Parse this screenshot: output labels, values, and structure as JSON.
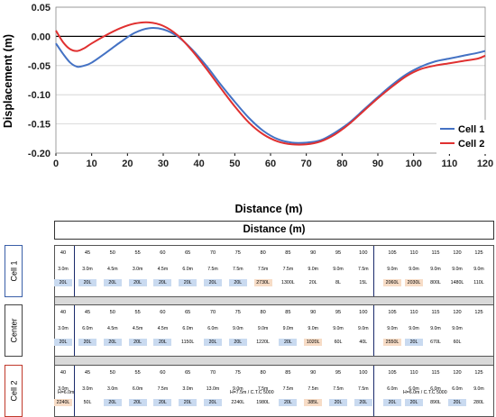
{
  "chart_data": {
    "type": "line",
    "xlabel": "Distance (m)",
    "ylabel": "Displacement (m)",
    "xlim": [
      0,
      120
    ],
    "ylim": [
      -0.2,
      0.05
    ],
    "xticks": [
      "0",
      "10",
      "20",
      "30",
      "40",
      "50",
      "60",
      "70",
      "80",
      "90",
      "100",
      "110",
      "120"
    ],
    "yticks": [
      "0.05",
      "0.00",
      "-0.05",
      "-0.10",
      "-0.15",
      "-0.20"
    ],
    "grid": true,
    "legend": "bottom-right",
    "series": [
      {
        "name": "Cell 1",
        "color": "#4472c4",
        "x": [
          0,
          2,
          4,
          6,
          8,
          10,
          14,
          18,
          22,
          26,
          30,
          34,
          38,
          42,
          46,
          50,
          54,
          58,
          62,
          66,
          70,
          74,
          78,
          82,
          86,
          90,
          94,
          98,
          102,
          106,
          110,
          114,
          118,
          120
        ],
        "y": [
          -0.012,
          -0.03,
          -0.045,
          -0.052,
          -0.05,
          -0.045,
          -0.028,
          -0.01,
          0.006,
          0.014,
          0.012,
          0.0,
          -0.022,
          -0.05,
          -0.082,
          -0.112,
          -0.14,
          -0.162,
          -0.176,
          -0.182,
          -0.182,
          -0.178,
          -0.165,
          -0.148,
          -0.126,
          -0.104,
          -0.083,
          -0.065,
          -0.052,
          -0.043,
          -0.038,
          -0.033,
          -0.028,
          -0.025
        ]
      },
      {
        "name": "Cell 2",
        "color": "#e03030",
        "x": [
          0,
          2,
          4,
          6,
          8,
          10,
          14,
          18,
          22,
          26,
          30,
          34,
          38,
          42,
          46,
          50,
          54,
          58,
          62,
          66,
          70,
          74,
          78,
          82,
          86,
          90,
          94,
          98,
          102,
          106,
          110,
          114,
          118,
          120
        ],
        "y": [
          0.01,
          -0.01,
          -0.022,
          -0.025,
          -0.02,
          -0.012,
          0.002,
          0.014,
          0.022,
          0.024,
          0.018,
          0.002,
          -0.024,
          -0.055,
          -0.088,
          -0.12,
          -0.148,
          -0.168,
          -0.18,
          -0.185,
          -0.185,
          -0.18,
          -0.168,
          -0.15,
          -0.128,
          -0.106,
          -0.086,
          -0.068,
          -0.056,
          -0.05,
          -0.046,
          -0.042,
          -0.038,
          -0.033
        ]
      }
    ]
  },
  "table": {
    "title": "Distance (m)",
    "rows": [
      {
        "label": "Cell 1",
        "style": "blue",
        "cells": [
          {
            "pos": "40",
            "len": "3.0m",
            "vol": "20L",
            "hl": "blue"
          },
          {
            "pos": "45",
            "len": "3.0m",
            "vol": "20L",
            "hl": "blue"
          },
          {
            "pos": "50",
            "len": "4.5m",
            "vol": "20L",
            "hl": "blue"
          },
          {
            "pos": "55",
            "len": "3.0m",
            "vol": "20L",
            "hl": "blue"
          },
          {
            "pos": "60",
            "len": "4.5m",
            "vol": "20L",
            "hl": "blue"
          },
          {
            "pos": "65",
            "len": "6.0m",
            "vol": "20L",
            "hl": "blue"
          },
          {
            "pos": "70",
            "len": "7.5m",
            "vol": "20L",
            "hl": "blue"
          },
          {
            "pos": "75",
            "len": "7.5m",
            "vol": "20L",
            "hl": "blue"
          },
          {
            "pos": "80",
            "len": "7.5m",
            "vol": "2730L",
            "hl": "orange"
          },
          {
            "pos": "85",
            "len": "7.5m",
            "vol": "1300L",
            "hl": "none"
          },
          {
            "pos": "90",
            "len": "9.0m",
            "vol": "20L",
            "hl": "none"
          },
          {
            "pos": "95",
            "len": "9.0m",
            "vol": "8L",
            "hl": "none"
          },
          {
            "pos": "100",
            "len": "7.5m",
            "vol": "15L",
            "hl": "none"
          },
          {
            "pos": "105",
            "len": "9.0m",
            "vol": "2060L",
            "hl": "orange"
          },
          {
            "pos": "110",
            "len": "9.0m",
            "vol": "2030L",
            "hl": "orange"
          },
          {
            "pos": "115",
            "len": "9.0m",
            "vol": "800L",
            "hl": "none"
          },
          {
            "pos": "120",
            "len": "9.0m",
            "vol": "1480L",
            "hl": "none"
          },
          {
            "pos": "125",
            "len": "9.0m",
            "vol": "110L",
            "hl": "none"
          }
        ]
      },
      {
        "label": "Center",
        "style": "black",
        "cells": [
          {
            "pos": "40",
            "len": "3.0m",
            "vol": "20L",
            "hl": "blue"
          },
          {
            "pos": "45",
            "len": "6.0m",
            "vol": "20L",
            "hl": "blue"
          },
          {
            "pos": "50",
            "len": "4.5m",
            "vol": "20L",
            "hl": "blue"
          },
          {
            "pos": "55",
            "len": "4.5m",
            "vol": "20L",
            "hl": "blue"
          },
          {
            "pos": "60",
            "len": "4.5m",
            "vol": "20L",
            "hl": "blue"
          },
          {
            "pos": "65",
            "len": "6.0m",
            "vol": "1150L",
            "hl": "none"
          },
          {
            "pos": "70",
            "len": "6.0m",
            "vol": "20L",
            "hl": "blue"
          },
          {
            "pos": "75",
            "len": "9.0m",
            "vol": "20L",
            "hl": "blue"
          },
          {
            "pos": "80",
            "len": "9.0m",
            "vol": "1220L",
            "hl": "none"
          },
          {
            "pos": "85",
            "len": "9.0m",
            "vol": "20L",
            "hl": "blue"
          },
          {
            "pos": "90",
            "len": "9.0m",
            "vol": "1020L",
            "hl": "orange"
          },
          {
            "pos": "95",
            "len": "9.0m",
            "vol": "60L",
            "hl": "none"
          },
          {
            "pos": "100",
            "len": "9.0m",
            "vol": "40L",
            "hl": "none"
          },
          {
            "pos": "105",
            "len": "9.0m",
            "vol": "2550L",
            "hl": "orange"
          },
          {
            "pos": "110",
            "len": "9.0m",
            "vol": "20L",
            "hl": "blue"
          },
          {
            "pos": "115",
            "len": "9.0m",
            "vol": "670L",
            "hl": "none"
          },
          {
            "pos": "120",
            "len": "9.0m",
            "vol": "60L",
            "hl": "none"
          },
          {
            "pos": "125",
            "len": "",
            "vol": "",
            "hl": "none"
          }
        ]
      },
      {
        "label": "Cell 2",
        "style": "red",
        "cells": [
          {
            "pos": "40",
            "len": "3.0m",
            "vol": "2240L",
            "hl": "orange"
          },
          {
            "pos": "45",
            "len": "3.0m",
            "vol": "50L",
            "hl": "none"
          },
          {
            "pos": "50",
            "len": "3.0m",
            "vol": "20L",
            "hl": "blue"
          },
          {
            "pos": "55",
            "len": "6.0m",
            "vol": "20L",
            "hl": "blue"
          },
          {
            "pos": "60",
            "len": "7.5m",
            "vol": "20L",
            "hl": "blue"
          },
          {
            "pos": "65",
            "len": "3.0m",
            "vol": "20L",
            "hl": "blue"
          },
          {
            "pos": "70",
            "len": "13.0m",
            "vol": "20L",
            "hl": "blue"
          },
          {
            "pos": "75",
            "len": "9.0m",
            "vol": "2240L",
            "hl": "none"
          },
          {
            "pos": "80",
            "len": "7.5m",
            "vol": "1980L",
            "hl": "none"
          },
          {
            "pos": "85",
            "len": "7.5m",
            "vol": "20L",
            "hl": "blue"
          },
          {
            "pos": "90",
            "len": "7.5m",
            "vol": "385L",
            "hl": "orange"
          },
          {
            "pos": "95",
            "len": "7.5m",
            "vol": "20L",
            "hl": "blue"
          },
          {
            "pos": "100",
            "len": "7.5m",
            "vol": "20L",
            "hl": "blue"
          },
          {
            "pos": "105",
            "len": "6.0m",
            "vol": "20L",
            "hl": "blue"
          },
          {
            "pos": "110",
            "len": "6.0m",
            "vol": "20L",
            "hl": "blue"
          },
          {
            "pos": "115",
            "len": "6.0m",
            "vol": "890L",
            "hl": "none"
          },
          {
            "pos": "120",
            "len": "6.0m",
            "vol": "20L",
            "hl": "blue"
          },
          {
            "pos": "125",
            "len": "9.0m",
            "vol": "280L",
            "hl": "none"
          }
        ]
      }
    ],
    "footers": [
      "H=6.0m",
      "H=7.5m / C.T.C 5000",
      "H=6.0m / C.T.C 5000"
    ]
  }
}
